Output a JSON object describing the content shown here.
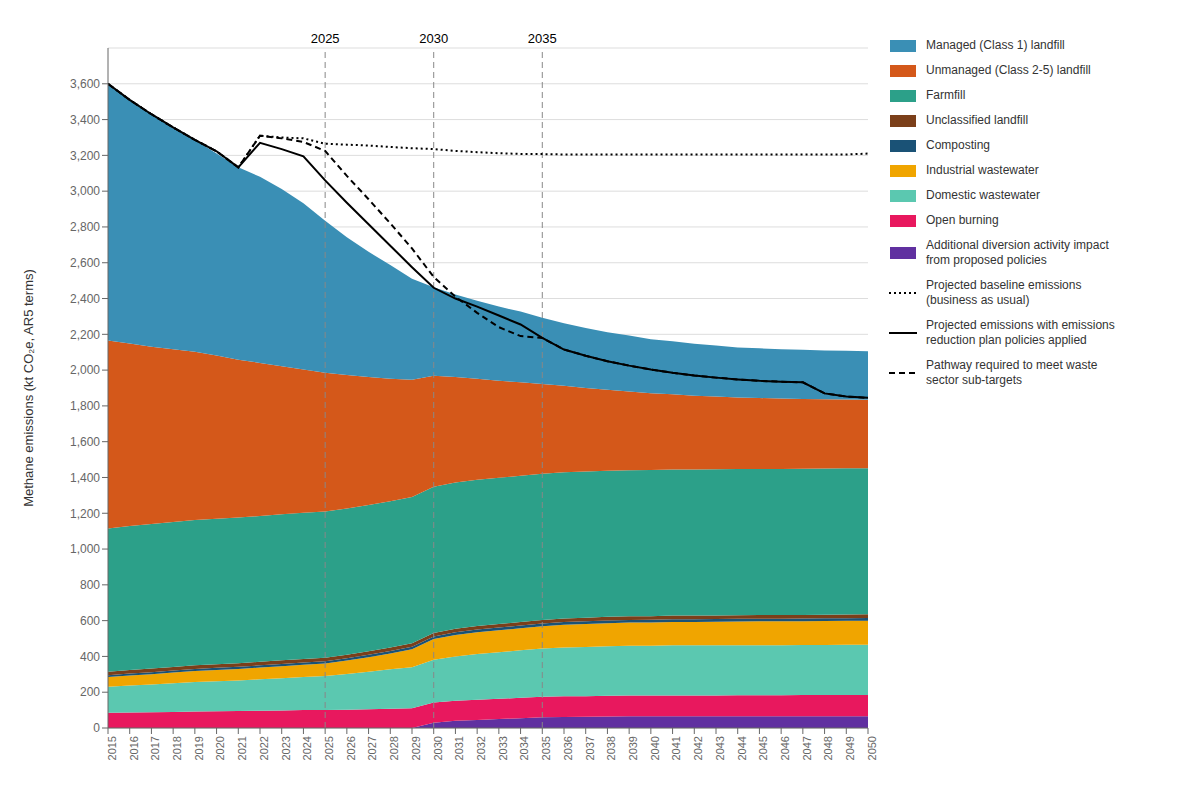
{
  "chart_data": {
    "type": "area",
    "stacked": true,
    "ylabel": "Methane emissions (kt CO₂e, AR5 terms)",
    "x": [
      2015,
      2016,
      2017,
      2018,
      2019,
      2020,
      2021,
      2022,
      2023,
      2024,
      2025,
      2026,
      2027,
      2028,
      2029,
      2030,
      2031,
      2032,
      2033,
      2034,
      2035,
      2036,
      2037,
      2038,
      2039,
      2040,
      2041,
      2042,
      2043,
      2044,
      2045,
      2046,
      2047,
      2048,
      2049,
      2050
    ],
    "xlim": [
      2015,
      2050
    ],
    "xticks": [
      2015,
      2016,
      2017,
      2018,
      2019,
      2020,
      2021,
      2022,
      2023,
      2024,
      2025,
      2026,
      2027,
      2028,
      2029,
      2030,
      2031,
      2032,
      2033,
      2034,
      2035,
      2036,
      2037,
      2038,
      2039,
      2040,
      2041,
      2042,
      2043,
      2044,
      2045,
      2046,
      2047,
      2048,
      2049,
      2050
    ],
    "ylim": [
      0,
      3800
    ],
    "yticks": [
      0,
      200,
      400,
      600,
      800,
      {
        "value": 1000,
        "label": "1,000"
      },
      {
        "value": 1200,
        "label": "1,200"
      },
      {
        "value": 1400,
        "label": "1,400"
      },
      {
        "value": 1600,
        "label": "1,600"
      },
      {
        "value": 1800,
        "label": "1,800"
      },
      {
        "value": 2000,
        "label": "2,000"
      },
      {
        "value": 2200,
        "label": "2,200"
      },
      {
        "value": 2400,
        "label": "2,400"
      },
      {
        "value": 2600,
        "label": "2,600"
      },
      {
        "value": 2800,
        "label": "2,800"
      },
      {
        "value": 3000,
        "label": "3,000"
      },
      {
        "value": 3200,
        "label": "3,200"
      },
      {
        "value": 3400,
        "label": "3,400"
      },
      {
        "value": 3600,
        "label": "3,600"
      }
    ],
    "grid": "y",
    "legend": "right",
    "annotations": [
      {
        "x": 2025,
        "text": "2025",
        "color": "#888888",
        "line_style": "dashed"
      },
      {
        "x": 2030,
        "text": "2030",
        "color": "#888888",
        "line_style": "dashed"
      },
      {
        "x": 2035,
        "text": "2035",
        "color": "#888888",
        "line_style": "dashed"
      }
    ],
    "series": [
      {
        "name": "Additional diversion activity impact\nfrom proposed policies",
        "type": "area",
        "color": "#6030a0",
        "values": [
          0,
          0,
          0,
          0,
          0,
          0,
          0,
          0,
          0,
          0,
          0,
          0,
          0,
          0,
          0,
          30,
          40,
          45,
          50,
          55,
          60,
          62,
          63,
          64,
          65,
          65,
          65,
          65,
          65,
          65,
          65,
          65,
          65,
          65,
          65,
          65
        ]
      },
      {
        "name": "Open burning",
        "type": "area",
        "color": "#e8185e",
        "values": [
          85,
          87,
          88,
          90,
          92,
          93,
          95,
          97,
          98,
          100,
          100,
          102,
          105,
          108,
          110,
          112,
          112,
          113,
          113,
          114,
          114,
          115,
          115,
          116,
          116,
          116,
          117,
          117,
          117,
          118,
          118,
          118,
          119,
          119,
          120,
          120
        ]
      },
      {
        "name": "Domestic wastewater",
        "type": "area",
        "color": "#5bc8b0",
        "values": [
          145,
          150,
          155,
          160,
          165,
          168,
          170,
          175,
          180,
          185,
          190,
          200,
          210,
          220,
          230,
          240,
          248,
          255,
          260,
          265,
          270,
          273,
          275,
          277,
          278,
          279,
          280,
          280,
          280,
          280,
          280,
          280,
          280,
          280,
          280,
          280
        ]
      },
      {
        "name": "Industrial wastewater",
        "type": "area",
        "color": "#f0a500",
        "values": [
          55,
          57,
          58,
          60,
          62,
          63,
          65,
          66,
          67,
          68,
          70,
          75,
          80,
          88,
          100,
          115,
          120,
          122,
          123,
          124,
          125,
          127,
          128,
          129,
          130,
          130,
          131,
          131,
          132,
          132,
          133,
          133,
          133,
          134,
          134,
          135
        ]
      },
      {
        "name": "Composting",
        "type": "area",
        "color": "#1a5276",
        "values": [
          10,
          10,
          11,
          11,
          11,
          12,
          12,
          12,
          13,
          13,
          13,
          13,
          14,
          14,
          14,
          14,
          15,
          15,
          15,
          15,
          15,
          15,
          15,
          15,
          15,
          15,
          15,
          15,
          15,
          15,
          15,
          15,
          15,
          15,
          15,
          15
        ]
      },
      {
        "name": "Unclassified landfill",
        "type": "area",
        "color": "#7b3f1a",
        "values": [
          20,
          20,
          20,
          20,
          20,
          20,
          20,
          20,
          20,
          20,
          20,
          20,
          20,
          20,
          20,
          20,
          20,
          20,
          20,
          20,
          20,
          20,
          20,
          20,
          20,
          20,
          20,
          20,
          20,
          20,
          20,
          20,
          20,
          20,
          20,
          20
        ]
      },
      {
        "name": "Farmfill",
        "type": "area",
        "color": "#2ca089",
        "values": [
          800,
          805,
          808,
          810,
          812,
          813,
          814,
          815,
          816,
          817,
          817,
          817,
          817,
          817,
          817,
          817,
          817,
          817,
          817,
          817,
          817,
          817,
          817,
          817,
          817,
          817,
          817,
          817,
          817,
          817,
          817,
          817,
          817,
          817,
          817,
          817
        ]
      },
      {
        "name": "Unmanaged (Class 2-5) landfill",
        "type": "area",
        "color": "#d4581a",
        "values": [
          1050,
          1020,
          990,
          965,
          940,
          912,
          882,
          855,
          828,
          800,
          775,
          745,
          715,
          685,
          655,
          620,
          590,
          565,
          542,
          522,
          502,
          483,
          467,
          452,
          440,
          428,
          420,
          412,
          406,
          400,
          396,
          393,
          390,
          387,
          385,
          383
        ]
      },
      {
        "name": "Managed (Class 1) landfill",
        "type": "area",
        "color": "#3a8fb5",
        "values": [
          1430,
          1360,
          1300,
          1240,
          1185,
          1130,
          1075,
          1040,
          990,
          930,
          850,
          770,
          700,
          635,
          565,
          495,
          460,
          435,
          415,
          395,
          370,
          350,
          335,
          322,
          312,
          303,
          296,
          290,
          285,
          280,
          278,
          276,
          275,
          273,
          272,
          270
        ]
      },
      {
        "name": "Projected baseline emissions\n(business as usual)",
        "type": "line",
        "color": "#000000",
        "line_style": "dotted",
        "values": [
          3600,
          3510,
          3430,
          3356,
          3287,
          3223,
          3133,
          3310,
          3300,
          3295,
          3265,
          3260,
          3255,
          3247,
          3240,
          3235,
          3225,
          3218,
          3212,
          3208,
          3207,
          3205,
          3205,
          3205,
          3205,
          3205,
          3205,
          3205,
          3205,
          3205,
          3205,
          3205,
          3205,
          3205,
          3205,
          3210
        ]
      },
      {
        "name": "Projected emissions with emissions\nreduction plan policies applied",
        "type": "line",
        "color": "#000000",
        "line_style": "solid",
        "values": [
          3600,
          3510,
          3430,
          3356,
          3287,
          3223,
          3133,
          3270,
          3235,
          3195,
          3060,
          2935,
          2815,
          2695,
          2575,
          2460,
          2400,
          2355,
          2305,
          2255,
          2180,
          2115,
          2080,
          2050,
          2025,
          2003,
          1985,
          1970,
          1958,
          1948,
          1940,
          1935,
          1932,
          1870,
          1852,
          1845
        ]
      },
      {
        "name": "Pathway required to meet waste\nsector sub-targets",
        "type": "line",
        "color": "#000000",
        "line_style": "dashed",
        "values": [
          3600,
          3510,
          3430,
          3356,
          3287,
          3223,
          3133,
          3310,
          3295,
          3275,
          3225,
          3085,
          2955,
          2820,
          2680,
          2520,
          2410,
          2320,
          2240,
          2190,
          2180,
          2115,
          2080,
          2050,
          2025,
          2003,
          1985,
          1970,
          1958,
          1948,
          1940,
          1935,
          1932,
          1870,
          1852,
          1845
        ]
      }
    ]
  }
}
